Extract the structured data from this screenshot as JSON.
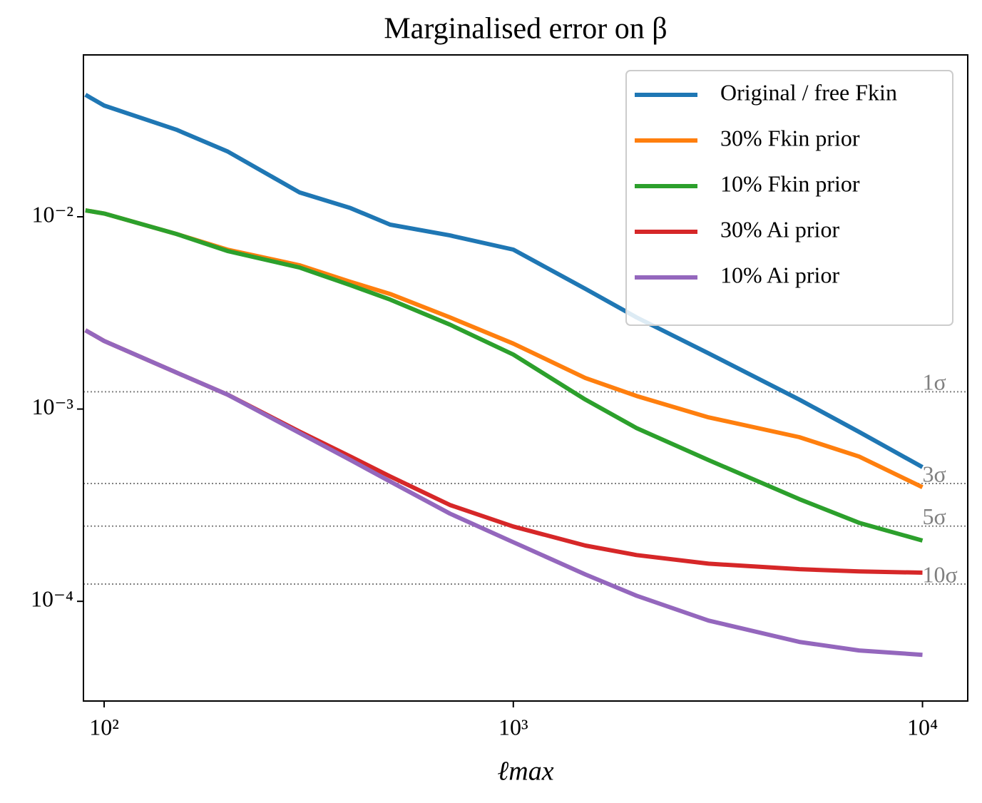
{
  "chart_data": {
    "type": "line",
    "title": "Marginalised error on β",
    "xlabel": "ℓmax",
    "xscale": "log",
    "yscale": "log",
    "xlim": [
      89,
      12900
    ],
    "ylim": [
      3.03e-05,
      0.0695
    ],
    "xticks": [
      {
        "value": 100,
        "label": "10²"
      },
      {
        "value": 1000,
        "label": "10³"
      },
      {
        "value": 10000,
        "label": "10⁴"
      }
    ],
    "yticks": [
      {
        "value": 0.0001,
        "label": "10⁻⁴"
      },
      {
        "value": 0.001,
        "label": "10⁻³"
      },
      {
        "value": 0.01,
        "label": "10⁻²"
      }
    ],
    "legend": "upper right",
    "x": [
      90,
      100,
      150,
      200,
      300,
      400,
      500,
      700,
      1000,
      1500,
      2000,
      3000,
      5000,
      7000,
      10000
    ],
    "series": [
      {
        "name": "Original / free Fkin",
        "color": "#1f77b4",
        "values": [
          0.0431,
          0.0379,
          0.0284,
          0.0219,
          0.0134,
          0.0111,
          0.0091,
          0.008,
          0.00675,
          0.00422,
          0.003,
          0.00195,
          0.00112,
          0.00076,
          0.000499
        ]
      },
      {
        "name": "30% Fkin prior",
        "color": "#ff7f0e",
        "values": [
          0.0108,
          0.0104,
          0.00815,
          0.00675,
          0.0056,
          0.00459,
          0.00397,
          0.003,
          0.00219,
          0.00145,
          0.00117,
          0.000906,
          0.000714,
          0.000566,
          0.000392
        ]
      },
      {
        "name": "10% Fkin prior",
        "color": "#2ca02c",
        "values": [
          0.0108,
          0.0104,
          0.00815,
          0.00664,
          0.00545,
          0.00441,
          0.00371,
          0.00275,
          0.00192,
          0.00112,
          0.000797,
          0.000543,
          0.00034,
          0.000256,
          0.000207
        ]
      },
      {
        "name": "30% Ai prior",
        "color": "#d62728",
        "values": [
          0.00257,
          0.00226,
          0.00155,
          0.00119,
          0.000764,
          0.000566,
          0.000446,
          0.000317,
          0.000245,
          0.000195,
          0.000174,
          0.000157,
          0.000147,
          0.000143,
          0.000141
        ]
      },
      {
        "name": "10% Ai prior",
        "color": "#9467bd",
        "values": [
          0.00257,
          0.00226,
          0.00155,
          0.00119,
          0.000752,
          0.000543,
          0.00042,
          0.000286,
          0.000203,
          0.000138,
          0.000107,
          7.94e-05,
          6.15e-05,
          5.55e-05,
          5.27e-05
        ]
      }
    ],
    "reference_lines": [
      {
        "value": 0.00123,
        "label": "1σ"
      },
      {
        "value": 0.00041,
        "label": "3σ"
      },
      {
        "value": 0.000246,
        "label": "5σ"
      },
      {
        "value": 0.000123,
        "label": "10σ"
      }
    ],
    "reference_color": "#808080"
  }
}
